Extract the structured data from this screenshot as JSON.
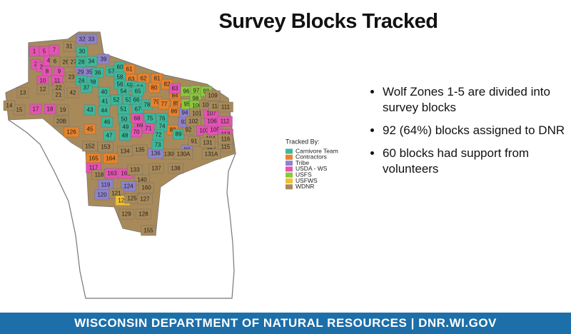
{
  "header": {
    "title": "Survey Blocks Tracked"
  },
  "bullets": [
    "Wolf Zones 1-5 are divided into survey blocks",
    "92 (64%) blocks assigned to DNR",
    "60 blocks had support from volunteers"
  ],
  "legend": {
    "title": "Tracked By:",
    "items": [
      {
        "label": "Carnivore Team",
        "color": "#3cb89a"
      },
      {
        "label": "Contractors",
        "color": "#e8822a"
      },
      {
        "label": "Tribe",
        "color": "#8f83cc"
      },
      {
        "label": "USDA - WS",
        "color": "#e653b4"
      },
      {
        "label": "USFS",
        "color": "#8cc63f"
      },
      {
        "label": "USFWS",
        "color": "#f0c030"
      },
      {
        "label": "WDNR",
        "color": "#a88a5a"
      }
    ]
  },
  "blocks": [
    {
      "label": "1",
      "color": "#e653b4"
    },
    {
      "label": "5",
      "color": "#e653b4"
    },
    {
      "label": "7",
      "color": "#e653b4"
    },
    {
      "label": "2",
      "color": "#e653b4"
    },
    {
      "label": "3",
      "color": "#e653b4"
    },
    {
      "label": "4",
      "color": "#e653b4"
    },
    {
      "label": "8",
      "color": "#e653b4"
    },
    {
      "label": "9",
      "color": "#e653b4"
    },
    {
      "label": "10",
      "color": "#e653b4"
    },
    {
      "label": "11",
      "color": "#e653b4"
    },
    {
      "label": "31",
      "color": "#a88a5a"
    },
    {
      "label": "32",
      "color": "#8f83cc"
    },
    {
      "label": "33",
      "color": "#8f83cc"
    },
    {
      "label": "30",
      "color": "#3cb89a"
    },
    {
      "label": "6",
      "color": "#a88a5a"
    },
    {
      "label": "26",
      "color": "#a88a5a"
    },
    {
      "label": "27",
      "color": "#a88a5a"
    },
    {
      "label": "28",
      "color": "#3cb89a"
    },
    {
      "label": "34",
      "color": "#3cb89a"
    },
    {
      "label": "39",
      "color": "#8f83cc"
    },
    {
      "label": "29",
      "color": "#8f83cc"
    },
    {
      "label": "35",
      "color": "#8f83cc"
    },
    {
      "label": "36",
      "color": "#3cb89a"
    },
    {
      "label": "57",
      "color": "#3cb89a"
    },
    {
      "label": "60",
      "color": "#3cb89a"
    },
    {
      "label": "61",
      "color": "#e8822a"
    },
    {
      "label": "62",
      "color": "#e8822a"
    },
    {
      "label": "63",
      "color": "#e8822a"
    },
    {
      "label": "81",
      "color": "#e8822a"
    },
    {
      "label": "58",
      "color": "#3cb89a"
    },
    {
      "label": "56",
      "color": "#3cb89a"
    },
    {
      "label": "55",
      "color": "#3cb89a"
    },
    {
      "label": "64",
      "color": "#3cb89a"
    },
    {
      "label": "82",
      "color": "#e8822a"
    },
    {
      "label": "80",
      "color": "#e8822a"
    },
    {
      "label": "22",
      "color": "#a88a5a"
    },
    {
      "label": "23",
      "color": "#a88a5a"
    },
    {
      "label": "24",
      "color": "#3cb89a"
    },
    {
      "label": "38",
      "color": "#3cb89a"
    },
    {
      "label": "37",
      "color": "#3cb89a"
    },
    {
      "label": "12",
      "color": "#a88a5a"
    },
    {
      "label": "13",
      "color": "#a88a5a"
    },
    {
      "label": "21",
      "color": "#a88a5a"
    },
    {
      "label": "42",
      "color": "#a88a5a"
    },
    {
      "label": "40",
      "color": "#3cb89a"
    },
    {
      "label": "54",
      "color": "#3cb89a"
    },
    {
      "label": "53",
      "color": "#3cb89a"
    },
    {
      "label": "52",
      "color": "#3cb89a"
    },
    {
      "label": "41",
      "color": "#3cb89a"
    },
    {
      "label": "43",
      "color": "#3cb89a"
    },
    {
      "label": "44",
      "color": "#3cb89a"
    },
    {
      "label": "51",
      "color": "#3cb89a"
    },
    {
      "label": "50",
      "color": "#3cb89a"
    },
    {
      "label": "66",
      "color": "#3cb89a"
    },
    {
      "label": "65",
      "color": "#3cb89a"
    },
    {
      "label": "67",
      "color": "#3cb89a"
    },
    {
      "label": "78",
      "color": "#3cb89a"
    },
    {
      "label": "79",
      "color": "#e8822a"
    },
    {
      "label": "77",
      "color": "#e8822a"
    },
    {
      "label": "76",
      "color": "#3cb89a"
    },
    {
      "label": "75",
      "color": "#3cb89a"
    },
    {
      "label": "74",
      "color": "#3cb89a"
    },
    {
      "label": "84",
      "color": "#e8822a"
    },
    {
      "label": "83",
      "color": "#e653b4"
    },
    {
      "label": "85",
      "color": "#e8822a"
    },
    {
      "label": "86",
      "color": "#e8822a"
    },
    {
      "label": "87",
      "color": "#e8822a"
    },
    {
      "label": "88",
      "color": "#e8822a"
    },
    {
      "label": "89",
      "color": "#3cb89a"
    },
    {
      "label": "90",
      "color": "#8f83cc"
    },
    {
      "label": "91",
      "color": "#a88a5a"
    },
    {
      "label": "92",
      "color": "#a88a5a"
    },
    {
      "label": "93",
      "color": "#8f83cc"
    },
    {
      "label": "94",
      "color": "#8f83cc"
    },
    {
      "label": "95",
      "color": "#8cc63f"
    },
    {
      "label": "96",
      "color": "#8cc63f"
    },
    {
      "label": "97",
      "color": "#8cc63f"
    },
    {
      "label": "98",
      "color": "#8cc63f"
    },
    {
      "label": "99",
      "color": "#8cc63f"
    },
    {
      "label": "100",
      "color": "#8cc63f"
    },
    {
      "label": "101",
      "color": "#a88a5a"
    },
    {
      "label": "102",
      "color": "#a88a5a"
    },
    {
      "label": "103",
      "color": "#e653b4"
    },
    {
      "label": "104",
      "color": "#a88a5a"
    },
    {
      "label": "105",
      "color": "#e653b4"
    },
    {
      "label": "106",
      "color": "#e653b4"
    },
    {
      "label": "107",
      "color": "#e653b4"
    },
    {
      "label": "108",
      "color": "#a88a5a"
    },
    {
      "label": "109",
      "color": "#a88a5a"
    },
    {
      "label": "110",
      "color": "#a88a5a"
    },
    {
      "label": "111",
      "color": "#a88a5a"
    },
    {
      "label": "112",
      "color": "#e653b4"
    },
    {
      "label": "113",
      "color": "#e653b4"
    },
    {
      "label": "114",
      "color": "#a88a5a"
    },
    {
      "label": "115",
      "color": "#a88a5a"
    },
    {
      "label": "131A",
      "color": "#a88a5a"
    },
    {
      "label": "131",
      "color": "#a88a5a"
    },
    {
      "label": "130B",
      "color": "#a88a5a"
    },
    {
      "label": "130A",
      "color": "#a88a5a"
    },
    {
      "label": "136",
      "color": "#8f83cc"
    },
    {
      "label": "137",
      "color": "#a88a5a"
    },
    {
      "label": "138",
      "color": "#a88a5a"
    },
    {
      "label": "73",
      "color": "#3cb89a"
    },
    {
      "label": "72",
      "color": "#3cb89a"
    },
    {
      "label": "71",
      "color": "#e653b4"
    },
    {
      "label": "69",
      "color": "#e653b4"
    },
    {
      "label": "70",
      "color": "#e653b4"
    },
    {
      "label": "68",
      "color": "#e653b4"
    },
    {
      "label": "49",
      "color": "#3cb89a"
    },
    {
      "label": "48",
      "color": "#3cb89a"
    },
    {
      "label": "47",
      "color": "#3cb89a"
    },
    {
      "label": "46",
      "color": "#3cb89a"
    },
    {
      "label": "45",
      "color": "#e8822a"
    },
    {
      "label": "126",
      "color": "#e8822a"
    },
    {
      "label": "20B",
      "color": "#a88a5a"
    },
    {
      "label": "19",
      "color": "#a88a5a"
    },
    {
      "label": "17",
      "color": "#e653b4"
    },
    {
      "label": "18",
      "color": "#e653b4"
    },
    {
      "label": "15",
      "color": "#a88a5a"
    },
    {
      "label": "14",
      "color": "#a88a5a"
    },
    {
      "label": "152",
      "color": "#a88a5a"
    },
    {
      "label": "153",
      "color": "#a88a5a"
    },
    {
      "label": "134",
      "color": "#a88a5a"
    },
    {
      "label": "135",
      "color": "#a88a5a"
    },
    {
      "label": "165",
      "color": "#e8822a"
    },
    {
      "label": "164",
      "color": "#e8822a"
    },
    {
      "label": "117",
      "color": "#e653b4"
    },
    {
      "label": "118",
      "color": "#a88a5a"
    },
    {
      "label": "163",
      "color": "#e653b4"
    },
    {
      "label": "162",
      "color": "#e653b4"
    },
    {
      "label": "133",
      "color": "#a88a5a"
    },
    {
      "label": "140",
      "color": "#a88a5a"
    },
    {
      "label": "119",
      "color": "#8f83cc"
    },
    {
      "label": "124",
      "color": "#8f83cc"
    },
    {
      "label": "120",
      "color": "#8f83cc"
    },
    {
      "label": "121",
      "color": "#a88a5a"
    },
    {
      "label": "122",
      "color": "#f0c030"
    },
    {
      "label": "125",
      "color": "#a88a5a"
    },
    {
      "label": "127",
      "color": "#a88a5a"
    },
    {
      "label": "160",
      "color": "#a88a5a"
    },
    {
      "label": "129",
      "color": "#a88a5a"
    },
    {
      "label": "128",
      "color": "#a88a5a"
    },
    {
      "label": "155",
      "color": "#a88a5a"
    },
    {
      "label": "116",
      "color": "#a88a5a"
    }
  ],
  "footer": "WISCONSIN DEPARTMENT OF NATURAL RESOURCES | DNR.WI.GOV"
}
